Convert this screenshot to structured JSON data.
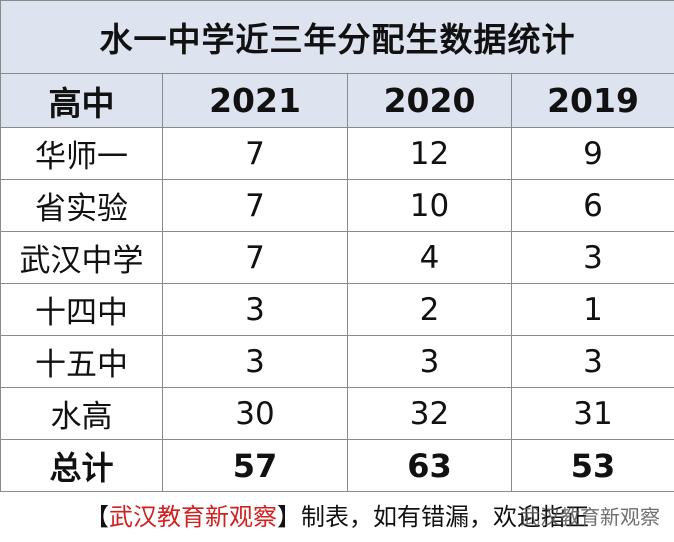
{
  "title": "水一中学近三年分配生数据统计",
  "headers": [
    "高中",
    "2021",
    "2020",
    "2019"
  ],
  "rows": [
    {
      "school": "华师一",
      "y2021": "7",
      "y2020": "12",
      "y2019": "9"
    },
    {
      "school": "省实验",
      "y2021": "7",
      "y2020": "10",
      "y2019": "6"
    },
    {
      "school": "武汉中学",
      "y2021": "7",
      "y2020": "4",
      "y2019": "3"
    },
    {
      "school": "十四中",
      "y2021": "3",
      "y2020": "2",
      "y2019": "1"
    },
    {
      "school": "十五中",
      "y2021": "3",
      "y2020": "3",
      "y2019": "3"
    },
    {
      "school": "水高",
      "y2021": "30",
      "y2020": "32",
      "y2019": "31"
    }
  ],
  "total": {
    "label": "总计",
    "y2021": "57",
    "y2020": "63",
    "y2019": "53"
  },
  "footer": {
    "open_bracket": "【",
    "brand": "武汉教育新观察",
    "close_bracket": "】",
    "text": "制表，如有错漏，欢迎指正",
    "credit": "武汉教育新观察"
  }
}
